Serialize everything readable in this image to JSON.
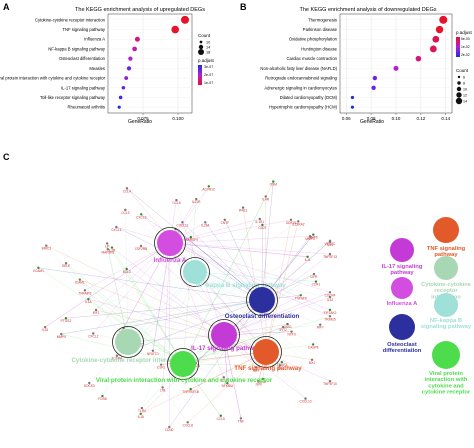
{
  "panels": {
    "a": "A",
    "b": "B",
    "c": "C"
  },
  "chart_data": [
    {
      "type": "scatter",
      "title": "The KEGG enrichment analysis of upregulated DEGs",
      "xlabel": "GeneRatio",
      "ylabel": "",
      "xlim": [
        0.05,
        0.11
      ],
      "xticks": [
        "0.075",
        "0.100"
      ],
      "xtick_values": [
        0.075,
        0.1
      ],
      "categories": [
        "Cytokine-cytokine receptor interaction",
        "TNF signaling pathway",
        "Influenza A",
        "NF-kappa B signaling pathway",
        "Osteoclast differentiation",
        "Measles",
        "Viral protein interaction with cytokine and cytokine receptor",
        "IL-17 signaling pathway",
        "Toll-like receptor signaling pathway",
        "Rheumatoid arthritis"
      ],
      "x": [
        0.105,
        0.098,
        0.071,
        0.069,
        0.066,
        0.065,
        0.063,
        0.061,
        0.059,
        0.058
      ],
      "count": [
        20,
        19,
        12,
        11,
        10,
        10,
        9,
        8,
        8,
        7
      ],
      "p_adjust_color": [
        0.0,
        0.0,
        0.01,
        0.015,
        0.02,
        0.03,
        0.025,
        0.03,
        0.035,
        0.04
      ],
      "legend_count_title": "Count",
      "legend_count": [
        "10",
        "14",
        "18"
      ],
      "legend_p_title": "p.adjust",
      "legend_p": [
        "1e-07",
        "2e-07",
        "3e-07"
      ]
    },
    {
      "type": "scatter",
      "title": "The KEGG enrichment analysis of downregulated DEGs",
      "xlabel": "GeneRatio",
      "ylabel": "",
      "xlim": [
        0.055,
        0.145
      ],
      "xticks": [
        "0.06",
        "0.08",
        "0.10",
        "0.12",
        "0.14"
      ],
      "xtick_values": [
        0.06,
        0.08,
        0.1,
        0.12,
        0.14
      ],
      "categories": [
        "Thermogenesis",
        "Parkinson disease",
        "Oxidative phosphorylation",
        "Huntington disease",
        "Cardiac muscle contraction",
        "Non-alcoholic fatty liver disease (NAFLD)",
        "Retrograde endocannabinoid signaling",
        "Adrenergic signaling in cardiomyocytes",
        "Dilated cardiomyopathy (DCM)",
        "Hypertrophic cardiomyopathy (HCM)"
      ],
      "x": [
        0.138,
        0.135,
        0.132,
        0.13,
        0.118,
        0.1,
        0.083,
        0.082,
        0.065,
        0.065
      ],
      "count": [
        14,
        13,
        12,
        12,
        10,
        9,
        8,
        8,
        6,
        6
      ],
      "p_adjust_color": [
        0.0,
        0.0,
        0.01,
        0.01,
        0.02,
        0.04,
        0.06,
        0.06,
        0.08,
        0.08
      ],
      "legend_count_title": "Count",
      "legend_count": [
        "6",
        "8",
        "10",
        "12",
        "14"
      ],
      "legend_p_title": "p.adjust",
      "legend_p": [
        "5e-03",
        "1e-02",
        "2e-02"
      ]
    }
  ],
  "network": {
    "categories": [
      {
        "label": "Influenza A",
        "color": "#d24de0"
      },
      {
        "label": "NF-kappa B signaling pathway",
        "color": "#9fe0d8"
      },
      {
        "label": "Osteoclast differentiation",
        "color": "#2c2f9e"
      },
      {
        "label": "IL-17 signaling pathway",
        "color": "#c43ad6"
      },
      {
        "label": "TNF signaling pathway",
        "color": "#e35a2a"
      },
      {
        "label": "Cytokine-cytokine receptor interaction",
        "color": "#a7d8b3"
      },
      {
        "label": "Viral protein interaction with cytokine and cytokine receptor",
        "color": "#4cdc4c"
      }
    ],
    "genes": [
      "EIF2AK2",
      "TRIM25",
      "IRF7",
      "OAS1",
      "NXF3",
      "IFIT2",
      "CASP8",
      "MX1",
      "TNFSF10",
      "TRAF3",
      "IL6",
      "CXCL10",
      "IL1B",
      "FOS",
      "JUN",
      "NFKBIA",
      "TNF",
      "CCL2",
      "CCL5",
      "CXCL8",
      "IL12A",
      "TNFRSF1B",
      "CD40",
      "LTB",
      "IL18",
      "TLR4",
      "CSF1",
      "FOSB",
      "NFATC1",
      "SOCS3",
      "CCR7",
      "IL10RA",
      "IL2RB",
      "CCL20",
      "CXCL2",
      "MMP9",
      "PTGS2",
      "IL15",
      "IRF1",
      "IL1A",
      "TNFAIP3",
      "ICAM1",
      "VCAM1",
      "SELE",
      "BIRC3",
      "BCL3",
      "MAP3K8",
      "LIF",
      "IL7R",
      "CSF2RB",
      "CXCL1",
      "CXCL3",
      "CCL3",
      "CCL4",
      "CCL7",
      "CCL8",
      "CXCL11",
      "TNFRSF9",
      "IL21R",
      "IL23A",
      "ACVR1C",
      "CNTF",
      "IFNL1",
      "OSM",
      "IL1R1",
      "IL4R",
      "CD27",
      "IL22RA2",
      "GDF15",
      "BMP6",
      "MMP3",
      "VEGFC",
      "IL11",
      "IL24",
      "TNFSF13",
      "CCR1",
      "LIFR",
      "CXCR4",
      "TNFSF9",
      "IL32"
    ]
  }
}
